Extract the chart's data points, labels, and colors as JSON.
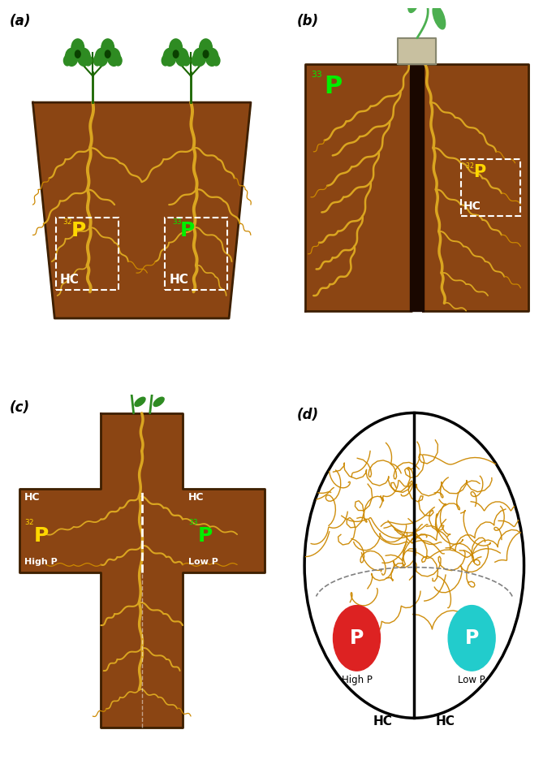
{
  "soil_color": "#8B4513",
  "root_main_color": "#DAA520",
  "root_fine_color": "#CC8800",
  "plant_green": "#2E8B22",
  "plant_light_green": "#4CAF50",
  "label_yellow": "#FFD700",
  "label_green": "#00EE00",
  "label_white": "#FFFFFF",
  "panel_labels": [
    "(a)",
    "(b)",
    "(c)",
    "(d)"
  ],
  "isotope_left_a": "32",
  "isotope_right_a": "33",
  "isotope_b_left": "33",
  "isotope_b_right": "32",
  "isotope_c_left": "32",
  "isotope_c_right": "33",
  "P_label": "P",
  "HC_label": "HC",
  "high_p": "High P",
  "low_p": "Low P",
  "bg_color": "#FFFFFF",
  "dark_brown": "#3d1f00",
  "divider_color": "#2a1000",
  "box_color": "#C8C0A0"
}
